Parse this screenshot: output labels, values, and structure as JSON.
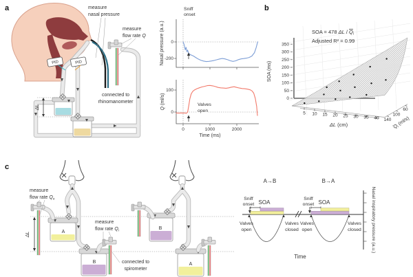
{
  "panels": {
    "a": {
      "label": "a",
      "measure_nasal_1": "measure",
      "measure_nasal_2": "nasal pressure",
      "measure_flow_1": "measure",
      "measure_flow_2": "flow rate ",
      "measure_flow_q": "Q",
      "pid": "PID",
      "connected_1": "connected to",
      "connected_2": "rhinomanometer",
      "delta_l": "ΔL"
    },
    "b": {
      "label": "b",
      "eq_pre": "SOA = 478 ",
      "eq_dl": "ΔL",
      "eq_mid": " / ",
      "eq_q": "Q",
      "eq_sub": "i",
      "r2": "Adjusted R² = 0.99"
    },
    "c": {
      "label": "c",
      "measure_e_1": "measure",
      "measure_e_2": "flow rate ",
      "measure_e_q": "Q",
      "measure_e_sub": "e",
      "measure_i_1": "measure",
      "measure_i_2": "flow rate ",
      "measure_i_q": "Q",
      "measure_i_sub": "i",
      "connected_1": "connected to",
      "connected_2": "spirometer",
      "delta_l": "ΔL",
      "bottle_a": "A",
      "bottle_b": "B",
      "timing": {
        "cond_1": "A→B",
        "cond_2": "B→A",
        "sniff_1": "Sniff",
        "sniff_2": "onset",
        "soa": "SOA",
        "open_1": "Valves",
        "open_2": "open",
        "closed_1": "Valves",
        "closed_2": "closed",
        "time": "Time",
        "axis": "Nasal inspiratory pressure (a.u.)"
      }
    }
  },
  "colors": {
    "blue_line": "#7d9ed6",
    "red_line": "#f2796a",
    "bottle_cyan": "#a8dce2",
    "bottle_tan": "#eed9a0",
    "bottle_yellow": "#f2f09c",
    "bottle_purple": "#cbaed5",
    "bar_yellow": "#f2ef9c",
    "bar_purple": "#cbaed5",
    "stripe_green": "#3fa34d",
    "stripe_red": "#e05252",
    "skin": "#f6d0bc",
    "airway_red": "#8e3c3e"
  },
  "chart_data": [
    {
      "type": "line",
      "id": "nasal-pressure",
      "ylabel": "Nasal pressure (a.u.)",
      "yticks": [
        0,
        -200
      ],
      "sniff_1": "Sniff",
      "sniff_2": "onset",
      "color": "#7d9ed6",
      "xlim": [
        -300,
        2850
      ],
      "ylim": [
        -300,
        80
      ],
      "x": [
        0,
        40,
        80,
        110,
        140,
        170,
        200,
        240,
        300,
        380,
        470,
        560,
        660,
        760,
        860,
        960,
        1060,
        1160,
        1260,
        1360,
        1460,
        1560,
        1660,
        1760,
        1860,
        1960,
        2060,
        2160,
        2260,
        2360,
        2460,
        2560,
        2660,
        2720,
        2780
      ],
      "y": [
        0,
        -35,
        -95,
        -65,
        -118,
        -100,
        -135,
        -148,
        -158,
        -170,
        -188,
        -207,
        -222,
        -232,
        -238,
        -236,
        -231,
        -224,
        -216,
        -207,
        -201,
        -206,
        -216,
        -228,
        -236,
        -229,
        -215,
        -206,
        -202,
        -197,
        -188,
        -172,
        -130,
        -70,
        2
      ]
    },
    {
      "type": "line",
      "id": "flow-rate",
      "ylabel_q": "Q",
      "ylabel_rest": " (ml/s)",
      "xlabel": "Time (ms)",
      "yticks": [
        100,
        0
      ],
      "xticks": [
        0,
        1000,
        2000
      ],
      "valves_1": "Valves",
      "valves_2": "open",
      "color": "#f2796a",
      "xlim": [
        -300,
        2850
      ],
      "ylim": [
        -45,
        150
      ],
      "x": [
        -260,
        -160,
        -60,
        0,
        60,
        120,
        170,
        210,
        250,
        300,
        360,
        430,
        510,
        600,
        700,
        800,
        900,
        1000,
        1100,
        1200,
        1300,
        1400,
        1500,
        1600,
        1700,
        1800,
        1900,
        2000,
        2100,
        2200,
        2300,
        2400,
        2500,
        2570,
        2630,
        2690,
        2740,
        2770
      ],
      "y": [
        -4,
        -5,
        -4,
        -5,
        -4,
        -6,
        0,
        28,
        60,
        82,
        94,
        101,
        106,
        110,
        114,
        117,
        120,
        121,
        119,
        116,
        112,
        110,
        109,
        108,
        110,
        113,
        115,
        112,
        109,
        107,
        106,
        104,
        101,
        96,
        86,
        62,
        25,
        -16
      ]
    },
    {
      "type": "scatter3d-surface",
      "id": "soa-model",
      "ylabel": "SOA (ms)",
      "xlabel_dl": "ΔL",
      "xlabel_rest": " (cm)",
      "zlabel_q": "Q",
      "zlabel_sub": "i",
      "zlabel_rest": " (ml/s)",
      "yticks": [
        0,
        50,
        100,
        150,
        200,
        250,
        300,
        350
      ],
      "xticks": [
        5,
        10,
        15,
        20,
        25,
        30,
        35,
        40
      ],
      "zticks": [
        140,
        100,
        60
      ],
      "surface": {
        "coef": 478,
        "dl_max": 45,
        "q_min": 50,
        "q_max": 150
      },
      "points": [
        {
          "dl": 5,
          "q": 140,
          "soa": 17
        },
        {
          "dl": 7,
          "q": 60,
          "soa": 56
        },
        {
          "dl": 10,
          "q": 100,
          "soa": 48
        },
        {
          "dl": 12,
          "q": 140,
          "soa": 41
        },
        {
          "dl": 13,
          "q": 60,
          "soa": 104
        },
        {
          "dl": 18,
          "q": 100,
          "soa": 86
        },
        {
          "dl": 20,
          "q": 140,
          "soa": 68
        },
        {
          "dl": 20,
          "q": 60,
          "soa": 159
        },
        {
          "dl": 25,
          "q": 100,
          "soa": 120
        },
        {
          "dl": 27,
          "q": 140,
          "soa": 92
        },
        {
          "dl": 28,
          "q": 60,
          "soa": 223
        },
        {
          "dl": 33,
          "q": 100,
          "soa": 158
        },
        {
          "dl": 35,
          "q": 140,
          "soa": 120
        },
        {
          "dl": 36,
          "q": 60,
          "soa": 287
        },
        {
          "dl": 40,
          "q": 100,
          "soa": 191
        }
      ]
    }
  ]
}
